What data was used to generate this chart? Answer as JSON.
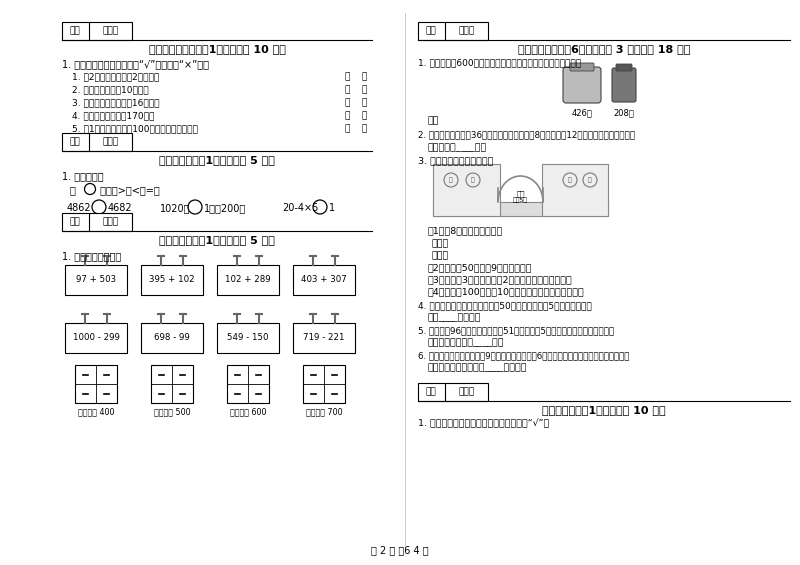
{
  "bg_color": "#ffffff",
  "page_num": "第 2 页 兲6 4 页",
  "sec5_title": "五、判断对与错（共1大题，共计 10 分）",
  "sec6_title": "六、比一比（共1大题，共计 5 分）",
  "sec7_title": "七、连一连（共1大题，共计 5 分）",
  "sec8_title": "八、解决问题（共6小题，每题 3 分，共计 18 分）",
  "sec10_title": "十、综合题（共1大题，共计 10 分）",
  "defen": "得分",
  "pinjuanren": "评卷人",
  "sec5_intro": "1. 辨一辨（对的在括号里打“√”，错的打“×”）。",
  "sec5_items": [
    "1. 过2点最多可以连成2条线段。",
    "2. 一块橡皮擦的厕10厘米。",
    "3. 一枝自动水笔的长是16厘米。",
    "4. 小红爸爸的身高有170米。",
    "5. 长1米的木棒要比长100厘米的鐵丝短一些。"
  ],
  "sec6_intro": "1. 我会比较。",
  "sec6_line2": "在 ○ 里填上>、<或=。",
  "sec7_intro": "1. 估一估，连一连。",
  "top_exprs": [
    "97 + 503",
    "395 + 102",
    "102 + 289",
    "403 + 307"
  ],
  "bot_exprs": [
    "1000 - 299",
    "698 - 99",
    "549 - 150",
    "719 - 221"
  ],
  "cabinet_labels": [
    "得数接近 400",
    "得数大约 500",
    "得数接近 600",
    "得数大约 700"
  ],
  "sec8_q1": "1. 王阿姨带了600元，想买一个电饭锅和一个热水瓶，钱够吗？",
  "sec8_q1_ans": "答：",
  "sec8_price1": "426元",
  "sec8_price2": "208元",
  "sec8_q2": "2. 一辆公共汽车里有36位乘客，到福州路下去8位，又上剨12位，这时车上有多少位？",
  "sec8_q2_ans": "答：车上有____位。",
  "sec8_q3": "3. 星期日同学们去游乐园。",
  "sec8_q3_1": "（1）劘8张门票用多少元？",
  "sec8_q3_2": "乘法：",
  "sec8_q3_3": "加法：",
  "sec8_q3_4": "（2）小莘拿50元，劙9张门票够吗？",
  "sec8_q3_5": "（3）小红了3张门票，还刴2元錢，小红带了多少錢？",
  "sec8_q3_6": "（4）小红拿100元，劙10张门票，还可以剩下多少錢？",
  "sec8_q4": "4. 一本应用题练习册，有应用顐50道，红红每天做5道，几天做完？",
  "sec8_q4_ans": "答：____天做完。",
  "sec8_q5": "5. 一本书內96页，花花已经看完51页，剩下的5天看完，平均每天要看几页？",
  "sec8_q5_ans": "答：平均每天要看____页。",
  "sec8_q6": "6. 爸爸、妈妈和我分别摘了9个玉米，小弟弟摘了6个，问我们全家一共摘了多少个玉米？",
  "sec8_q6_ans": "答：我们全家一共摘了____个玉米。",
  "sec10_q1": "1. 下面哪些图形是轴对称图形？在口里面“√”。"
}
